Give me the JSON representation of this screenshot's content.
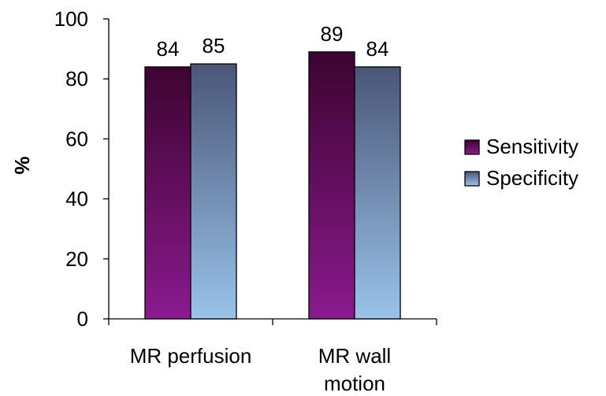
{
  "chart_data": {
    "type": "bar",
    "title": "",
    "xlabel": "",
    "ylabel": "%",
    "ylim": [
      0,
      100
    ],
    "yticks": [
      "0",
      "20",
      "40",
      "60",
      "80",
      "100"
    ],
    "categories": [
      [
        "MR perfusion"
      ],
      [
        "MR wall",
        "motion"
      ]
    ],
    "series": [
      {
        "name": "Sensitivity",
        "values": [
          84,
          89
        ],
        "color_top": "#3d0430",
        "color_bottom": "#8a1a8e"
      },
      {
        "name": "Specificity",
        "values": [
          85,
          84
        ],
        "color_top": "#4a5677",
        "color_bottom": "#99c3ea"
      }
    ],
    "grid": false,
    "legend_position": "right"
  }
}
